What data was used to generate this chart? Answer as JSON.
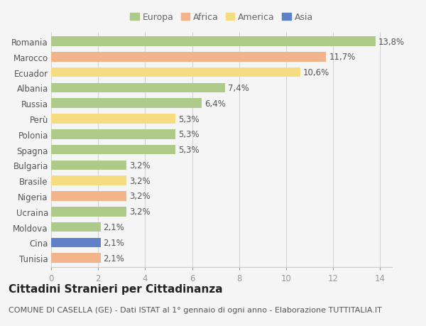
{
  "countries": [
    "Romania",
    "Marocco",
    "Ecuador",
    "Albania",
    "Russia",
    "Perù",
    "Polonia",
    "Spagna",
    "Bulgaria",
    "Brasile",
    "Nigeria",
    "Ucraina",
    "Moldova",
    "Cina",
    "Tunisia"
  ],
  "values": [
    13.8,
    11.7,
    10.6,
    7.4,
    6.4,
    5.3,
    5.3,
    5.3,
    3.2,
    3.2,
    3.2,
    3.2,
    2.1,
    2.1,
    2.1
  ],
  "labels": [
    "13,8%",
    "11,7%",
    "10,6%",
    "7,4%",
    "6,4%",
    "5,3%",
    "5,3%",
    "5,3%",
    "3,2%",
    "3,2%",
    "3,2%",
    "3,2%",
    "2,1%",
    "2,1%",
    "2,1%"
  ],
  "continents": [
    "Europa",
    "Africa",
    "America",
    "Europa",
    "Europa",
    "America",
    "Europa",
    "Europa",
    "Europa",
    "America",
    "Africa",
    "Europa",
    "Europa",
    "Asia",
    "Africa"
  ],
  "colors": {
    "Europa": "#aeca88",
    "Africa": "#f2b48a",
    "America": "#f5dc80",
    "Asia": "#6080c8"
  },
  "title": "Cittadini Stranieri per Cittadinanza",
  "subtitle": "COMUNE DI CASELLA (GE) - Dati ISTAT al 1° gennaio di ogni anno - Elaborazione TUTTITALIA.IT",
  "xlim": [
    0,
    14.5
  ],
  "xticks": [
    0,
    2,
    4,
    6,
    8,
    10,
    12,
    14
  ],
  "background_color": "#f5f5f5",
  "bar_height": 0.62,
  "title_fontsize": 11,
  "subtitle_fontsize": 8,
  "tick_fontsize": 8.5,
  "label_fontsize": 8.5,
  "legend_fontsize": 9
}
